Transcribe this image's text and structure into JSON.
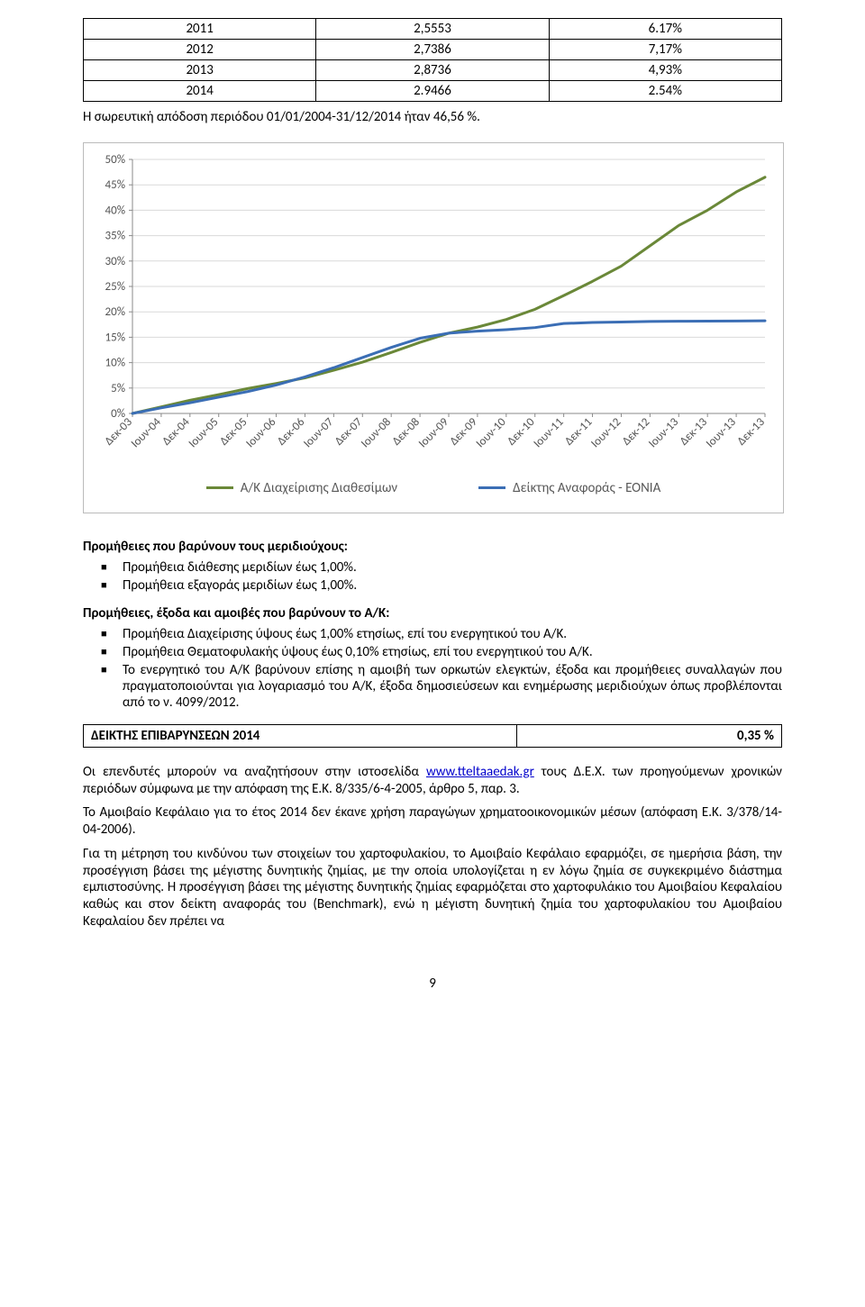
{
  "returns_table": {
    "rows": [
      [
        "2011",
        "2,5553",
        "6.17%"
      ],
      [
        "2012",
        "2,7386",
        "7,17%"
      ],
      [
        "2013",
        "2,8736",
        "4,93%"
      ],
      [
        "2014",
        "2.9466",
        "2.54%"
      ]
    ]
  },
  "cumulative_text": "Η σωρευτική απόδοση περιόδου 01/01/2004-31/12/2014 ήταν 46,56 %.",
  "chart": {
    "ylim": [
      0,
      50
    ],
    "ytick_step": 5,
    "ytick_labels": [
      "0%",
      "5%",
      "10%",
      "15%",
      "20%",
      "25%",
      "30%",
      "35%",
      "40%",
      "45%",
      "50%"
    ],
    "x_labels": [
      "Δεκ-03",
      "Ιουν-04",
      "Δεκ-04",
      "Ιουν-05",
      "Δεκ-05",
      "Ιουν-06",
      "Δεκ-06",
      "Ιουν-07",
      "Δεκ-07",
      "Ιουν-08",
      "Δεκ-08",
      "Ιουν-09",
      "Δεκ-09",
      "Ιουν-10",
      "Δεκ-10",
      "Ιουν-11",
      "Δεκ-11",
      "Ιουν-12",
      "Δεκ-12",
      "Ιουν-13",
      "Δεκ-13",
      "Ιουν-13",
      "Δεκ-13"
    ],
    "series": [
      {
        "name": "Α/Κ Διαχείρισης Διαθεσίμων",
        "color": "#6a8838",
        "values": [
          0,
          1.3,
          2.6,
          3.7,
          4.9,
          5.9,
          7,
          8.5,
          10.1,
          12,
          14,
          15.8,
          17,
          18.5,
          20.5,
          23.2,
          26,
          29,
          33,
          37,
          40,
          43.6,
          46.5
        ]
      },
      {
        "name": "Δείκτης Αναφοράς - ΕΟΝΙΑ",
        "color": "#3b6eb5",
        "values": [
          0,
          1.1,
          2.1,
          3.2,
          4.3,
          5.6,
          7.2,
          9,
          11,
          13,
          14.8,
          15.8,
          16.2,
          16.5,
          16.9,
          17.7,
          17.9,
          18,
          18.1,
          18.15,
          18.18,
          18.2,
          18.25
        ]
      }
    ],
    "grid_color": "#d9d9d9",
    "axis_color": "#bfbfbf",
    "line_width": 3,
    "background": "#ffffff"
  },
  "fees_heading": "Προμήθειες που βαρύνουν τους μεριδιούχους:",
  "fees_items": [
    "Προμήθεια διάθεσης μεριδίων έως 1,00%.",
    "Προμήθεια εξαγοράς μεριδίων έως 1,00%."
  ],
  "charges_heading": "Προμήθειες, έξοδα και αμοιβές που βαρύνουν το Α/Κ:",
  "charges_items": [
    "Προμήθεια Διαχείρισης ύψους έως 1,00% ετησίως, επί του ενεργητικού του Α/Κ.",
    "Προμήθεια Θεματοφυλακής ύψους έως 0,10% ετησίως, επί του ενεργητικού του Α/Κ.",
    "Το ενεργητικό του Α/Κ βαρύνουν επίσης η αμοιβή των ορκωτών ελεγκτών, έξοδα και προμήθειες συναλλαγών που πραγματοποιούνται για λογαριασμό του Α/Κ, έξοδα δημοσιεύσεων και ενημέρωσης μεριδιούχων όπως προβλέπονται από το ν. 4099/2012."
  ],
  "indicator": {
    "label": "ΔΕΙΚΤΗΣ ΕΠΙΒΑΡΥΝΣΕΩΝ 2014",
    "value": "0,35 %"
  },
  "para1_a": "Οι επενδυτές μπορούν να αναζητήσουν στην ιστοσελίδα ",
  "para1_link": "www.tteltaaedak.gr",
  "para1_b": " τους Δ.Ε.Χ. των προηγούμενων χρονικών περιόδων σύμφωνα με την απόφαση της Ε.Κ. 8/335/6-4-2005, άρθρο 5, παρ. 3.",
  "para2": "Το Αμοιβαίο Κεφάλαιο για το έτος 2014 δεν έκανε χρήση παραγώγων χρηματοοικονομικών μέσων (απόφαση Ε.Κ. 3/378/14-04-2006).",
  "para3": "Για τη μέτρηση του κινδύνου των στοιχείων του χαρτοφυλακίου, το Αμοιβαίο Κεφάλαιο εφαρμόζει, σε ημερήσια βάση, την προσέγγιση βάσει της μέγιστης δυνητικής ζημίας, με την οποία υπολογίζεται η εν λόγω ζημία σε συγκεκριμένο διάστημα εμπιστοσύνης. Η προσέγγιση βάσει της μέγιστης δυνητικής ζημίας εφαρμόζεται στο χαρτοφυλάκιο του Αμοιβαίου Κεφαλαίου καθώς και στον δείκτη αναφοράς του (Benchmark), ενώ η μέγιστη δυνητική ζημία του χαρτοφυλακίου του Αμοιβαίου Κεφαλαίου δεν πρέπει να",
  "page_number": "9"
}
